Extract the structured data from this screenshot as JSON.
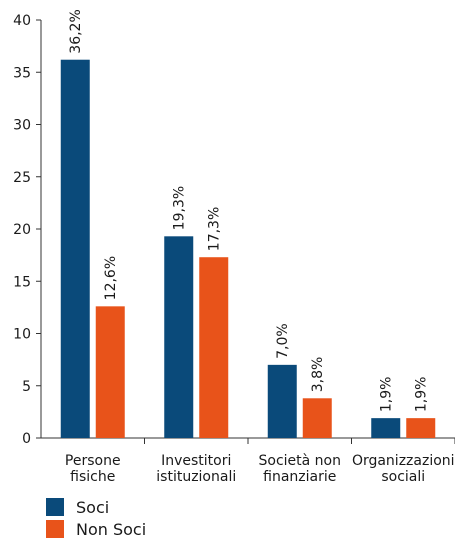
{
  "chart_data": {
    "type": "bar",
    "categories": [
      [
        "Persone",
        "fisiche"
      ],
      [
        "Investitori",
        "istituzionali"
      ],
      [
        "Società non",
        "finanziarie"
      ],
      [
        "Organizzazioni",
        "sociali"
      ]
    ],
    "series": [
      {
        "name": "Soci",
        "color": "#0a4a7a",
        "values": [
          36.2,
          19.3,
          7.0,
          1.9
        ],
        "labels": [
          "36,2%",
          "19,3%",
          "7,0%",
          "1,9%"
        ]
      },
      {
        "name": "Non Soci",
        "color": "#e8531a",
        "values": [
          12.6,
          17.3,
          3.8,
          1.9
        ],
        "labels": [
          "12,6%",
          "17,3%",
          "3,8%",
          "1,9%"
        ]
      }
    ],
    "yticks": [
      "0",
      "5",
      "10",
      "15",
      "20",
      "25",
      "30",
      "35",
      "40"
    ],
    "ylim": [
      0,
      40
    ],
    "grid": false,
    "legend_position": "bottom-left"
  }
}
